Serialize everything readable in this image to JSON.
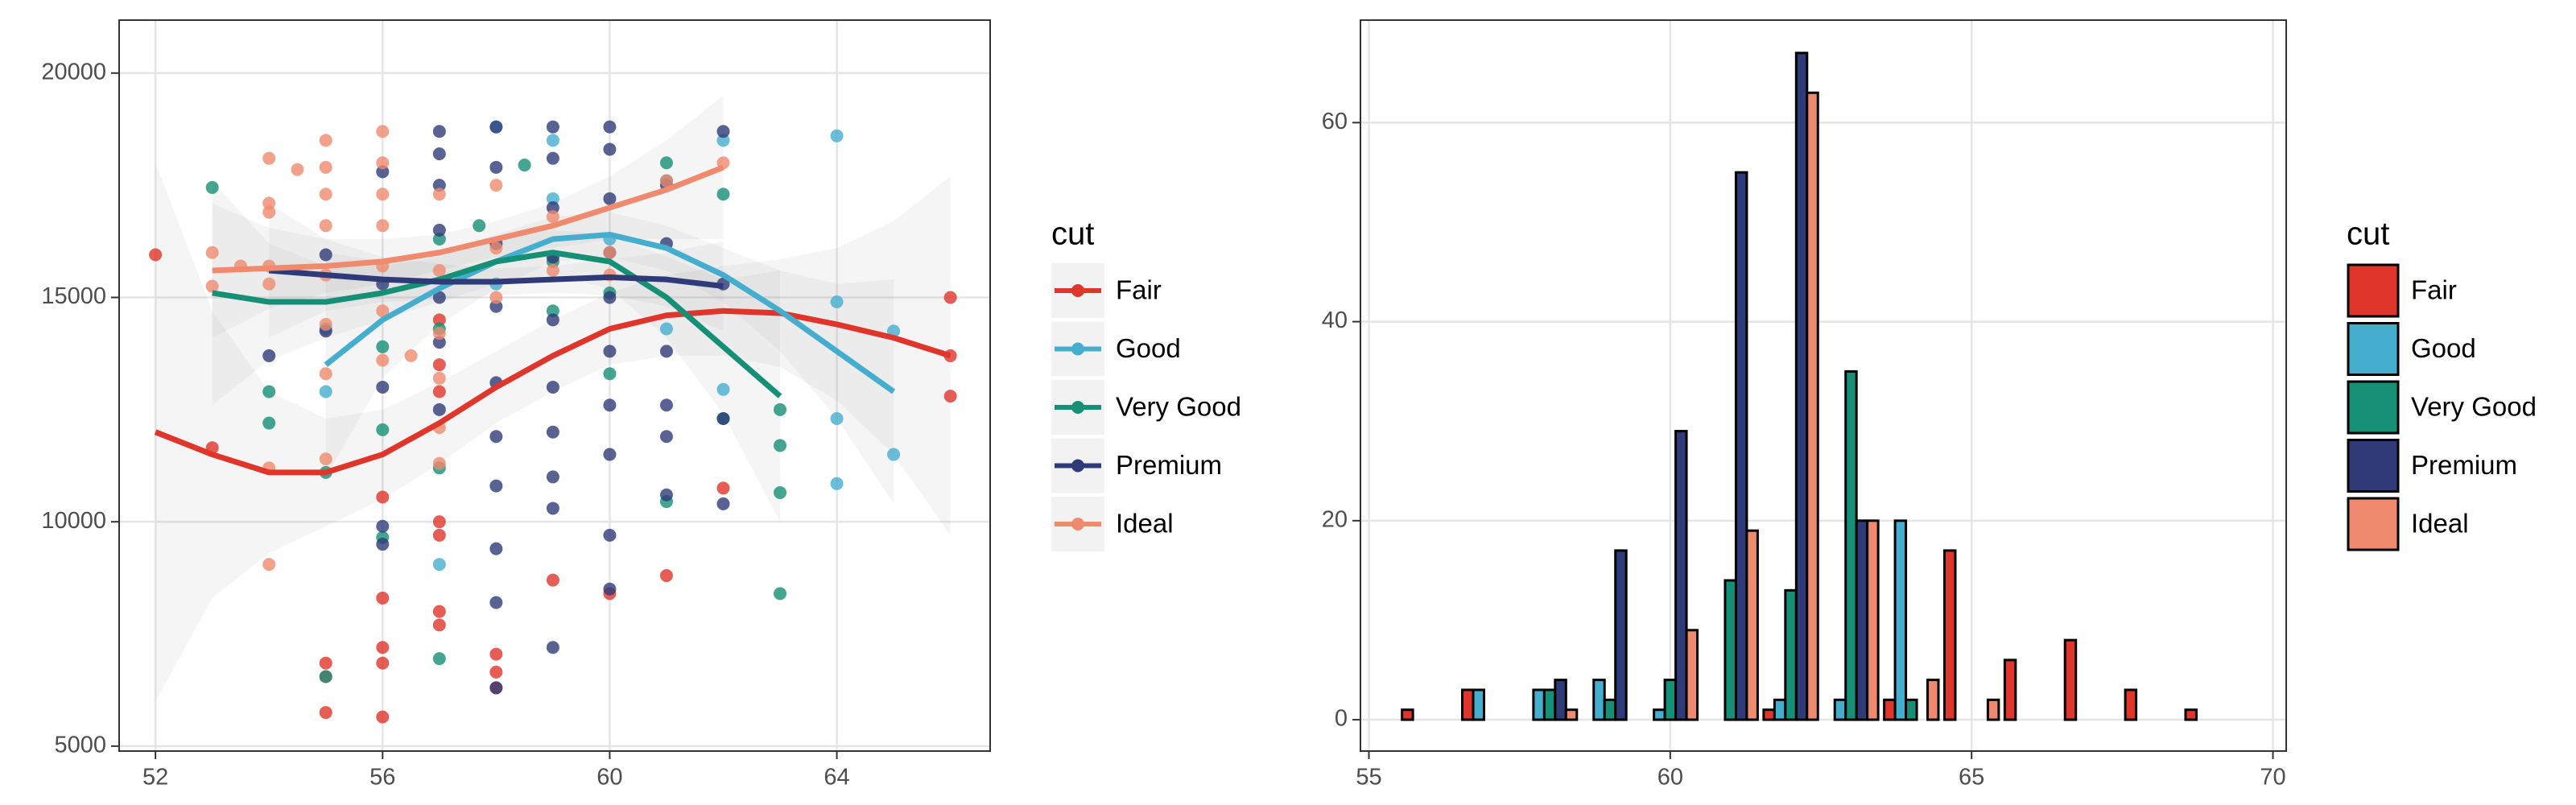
{
  "chart_data": [
    {
      "type": "scatter",
      "legend_title": "cut",
      "xlim": [
        51.36,
        66.7
      ],
      "ylim": [
        4890,
        21180
      ],
      "xticks": [
        52,
        56,
        60,
        64
      ],
      "yticks": [
        5000,
        10000,
        15000,
        20000
      ],
      "grid": true,
      "legend": "right",
      "series": [
        {
          "name": "Fair",
          "color": "#e0352b",
          "x": [
            52,
            53,
            55,
            55,
            55,
            56,
            56,
            56,
            56,
            56,
            57,
            57,
            57,
            57,
            57,
            58,
            58,
            58,
            59,
            60,
            61,
            62,
            66,
            66,
            66,
            57,
            57
          ],
          "values": [
            15950,
            11650,
            6850,
            6550,
            5750,
            10550,
            7200,
            6850,
            5650,
            8300,
            10000,
            9700,
            8000,
            7700,
            12900,
            7050,
            6650,
            6300,
            8700,
            8400,
            8800,
            10750,
            15000,
            13700,
            12800,
            13500,
            14500
          ],
          "smooth": {
            "x": [
              52,
              53,
              54,
              55,
              56,
              57,
              58,
              59,
              60,
              61,
              62,
              63,
              64,
              65,
              66
            ],
            "values": [
              12000,
              11500,
              11100,
              11100,
              11500,
              12200,
              13000,
              13700,
              14300,
              14600,
              14700,
              14650,
              14400,
              14100,
              13700
            ],
            "lower": [
              6000,
              8300,
              9300,
              9900,
              10500,
              11300,
              12200,
              12900,
              13500,
              13700,
              13700,
              13450,
              12700,
              11500,
              9700
            ],
            "upper": [
              18000,
              14700,
              12900,
              12300,
              12500,
              13100,
              13800,
              14500,
              15100,
              15500,
              15700,
              15850,
              16100,
              16700,
              17700
            ]
          }
        },
        {
          "name": "Good",
          "color": "#45aecf",
          "x": [
            55,
            55,
            57,
            58,
            59,
            60,
            62,
            62,
            64,
            64,
            64,
            64,
            65,
            65,
            61,
            59,
            58
          ],
          "values": [
            14300,
            12900,
            9050,
            18800,
            18500,
            16300,
            18500,
            12950,
            18600,
            14900,
            12300,
            10850,
            14250,
            11500,
            14300,
            17200,
            15300
          ],
          "smooth": {
            "x": [
              55,
              56,
              57,
              58,
              59,
              60,
              61,
              62,
              63,
              64,
              65
            ],
            "values": [
              13500,
              14500,
              15200,
              15800,
              16300,
              16400,
              16100,
              15500,
              14700,
              13800,
              12900
            ],
            "lower": [
              11000,
              13200,
              14400,
              15200,
              15800,
              15900,
              15600,
              14900,
              13800,
              12300,
              10400
            ],
            "upper": [
              16000,
              15800,
              16000,
              16400,
              16800,
              16900,
              16600,
              16100,
              15600,
              15300,
              15400
            ]
          }
        },
        {
          "name": "Very Good",
          "color": "#159076",
          "x": [
            53,
            54,
            54,
            55,
            55,
            56,
            56,
            56,
            57,
            57,
            57,
            57,
            57.7,
            58.5,
            59,
            60,
            61,
            61,
            61,
            62,
            62,
            63,
            63,
            63,
            63,
            60,
            59
          ],
          "values": [
            17450,
            12900,
            12200,
            6550,
            11100,
            12050,
            9650,
            13900,
            11200,
            6950,
            14300,
            16300,
            16600,
            17950,
            15800,
            15100,
            18000,
            17600,
            10450,
            17300,
            12300,
            12500,
            11700,
            10650,
            8400,
            13300,
            14700
          ],
          "smooth": {
            "x": [
              53,
              54,
              55,
              56,
              57,
              58,
              59,
              60,
              61,
              62,
              63
            ],
            "values": [
              15100,
              14900,
              14900,
              15100,
              15400,
              15800,
              16000,
              15800,
              15000,
              13900,
              12800
            ],
            "lower": [
              12600,
              13600,
              14100,
              14500,
              14900,
              15300,
              15500,
              15200,
              14100,
              12400,
              10000
            ],
            "upper": [
              17600,
              16200,
              15700,
              15700,
              15900,
              16300,
              16500,
              16400,
              15900,
              15400,
              15600
            ]
          }
        },
        {
          "name": "Premium",
          "color": "#2e3b78",
          "x": [
            54,
            55,
            55,
            56,
            56,
            56,
            56,
            56,
            57,
            57,
            57,
            57,
            57,
            57,
            57,
            58,
            58,
            58,
            58,
            58,
            58,
            58,
            58,
            58,
            58,
            59,
            59,
            59,
            59,
            59,
            59,
            59,
            59,
            59,
            59,
            60,
            60,
            60,
            60,
            60,
            60,
            60,
            60,
            60,
            60,
            61,
            61,
            61,
            61,
            61,
            61,
            62,
            62,
            62,
            62
          ],
          "values": [
            13700,
            15950,
            14250,
            13000,
            9900,
            9500,
            15300,
            17800,
            18700,
            18200,
            17500,
            16500,
            15000,
            14000,
            12500,
            18800,
            17900,
            16200,
            14800,
            13100,
            11900,
            10800,
            9400,
            8200,
            6300,
            18800,
            18100,
            17000,
            15900,
            14500,
            13000,
            12000,
            11000,
            10300,
            7200,
            18800,
            18300,
            17200,
            16000,
            15000,
            13800,
            12600,
            11500,
            9700,
            8500,
            17500,
            16200,
            13800,
            12600,
            10600,
            11900,
            18700,
            15300,
            12300,
            10400
          ],
          "smooth": {
            "x": [
              54,
              55,
              56,
              57,
              58,
              59,
              60,
              61,
              62
            ],
            "values": [
              15600,
              15500,
              15400,
              15350,
              15350,
              15400,
              15450,
              15400,
              15250
            ],
            "lower": [
              14100,
              14700,
              14900,
              14950,
              15050,
              15100,
              15050,
              14800,
              14250
            ],
            "upper": [
              17100,
              16300,
              15900,
              15750,
              15650,
              15700,
              15850,
              16000,
              16250
            ]
          }
        },
        {
          "name": "Ideal",
          "color": "#ef8a6e",
          "x": [
            53,
            53,
            53.5,
            54,
            54,
            54,
            54,
            54,
            54,
            54,
            54.5,
            55,
            55,
            55,
            55,
            55,
            55,
            55,
            55,
            56,
            56,
            56,
            56,
            56,
            56,
            56,
            56.5,
            57,
            57,
            57,
            57,
            57,
            57,
            58,
            58,
            58,
            59,
            59,
            60,
            60,
            61,
            62
          ],
          "values": [
            16000,
            15250,
            15700,
            18100,
            17100,
            16900,
            15700,
            15300,
            11200,
            9050,
            17850,
            18500,
            17900,
            17300,
            16600,
            15500,
            14400,
            13300,
            11400,
            18700,
            18000,
            17300,
            16600,
            15700,
            14700,
            13600,
            13700,
            17300,
            15600,
            14200,
            13200,
            12100,
            11300,
            17500,
            16100,
            15000,
            16800,
            15600,
            16000,
            15500,
            17600,
            18000
          ],
          "smooth": {
            "x": [
              53,
              54,
              55,
              56,
              57,
              58,
              59,
              60,
              61,
              62
            ],
            "values": [
              15600,
              15650,
              15700,
              15800,
              16000,
              16300,
              16600,
              17000,
              17400,
              17900
            ],
            "lower": [
              14100,
              14750,
              15100,
              15300,
              15600,
              15900,
              16100,
              16300,
              16300,
              16300
            ],
            "upper": [
              17100,
              16550,
              16300,
              16300,
              16400,
              16700,
              17100,
              17700,
              18500,
              19500
            ]
          }
        }
      ]
    },
    {
      "type": "histogram",
      "legend_title": "cut",
      "xlim": [
        54.86,
        70.22
      ],
      "ylim": [
        -3.15,
        70.3
      ],
      "xticks": [
        55,
        60,
        65,
        70
      ],
      "yticks": [
        0,
        20,
        40,
        60
      ],
      "grid": true,
      "legend": "right",
      "bins": [
        55.5,
        56.5,
        57.5,
        58.5,
        59.5,
        60.5,
        61.5,
        62.5,
        63.5,
        64.5,
        65.5,
        66.5,
        67.5,
        68.5,
        69.5
      ],
      "series": [
        {
          "name": "Fair",
          "color": "#e0352b",
          "values": [
            1,
            3,
            0,
            0,
            0,
            0,
            1,
            0,
            2,
            17,
            6,
            8,
            3,
            1
          ]
        },
        {
          "name": "Good",
          "color": "#45aecf",
          "values": [
            0,
            3,
            3,
            4,
            1,
            0,
            2,
            2,
            20,
            0,
            0,
            0,
            0,
            0
          ]
        },
        {
          "name": "Very Good",
          "color": "#159076",
          "values": [
            0,
            0,
            3,
            2,
            4,
            14,
            13,
            35,
            2,
            0,
            0,
            0,
            0,
            0
          ]
        },
        {
          "name": "Premium",
          "color": "#2e3b78",
          "values": [
            0,
            0,
            4,
            17,
            29,
            55,
            67,
            20,
            0,
            0,
            0,
            0,
            0,
            0
          ]
        },
        {
          "name": "Ideal",
          "color": "#ef8a6e",
          "values": [
            0,
            0,
            1,
            0,
            9,
            19,
            63,
            20,
            4,
            2,
            0,
            0,
            0,
            0
          ]
        }
      ]
    }
  ]
}
